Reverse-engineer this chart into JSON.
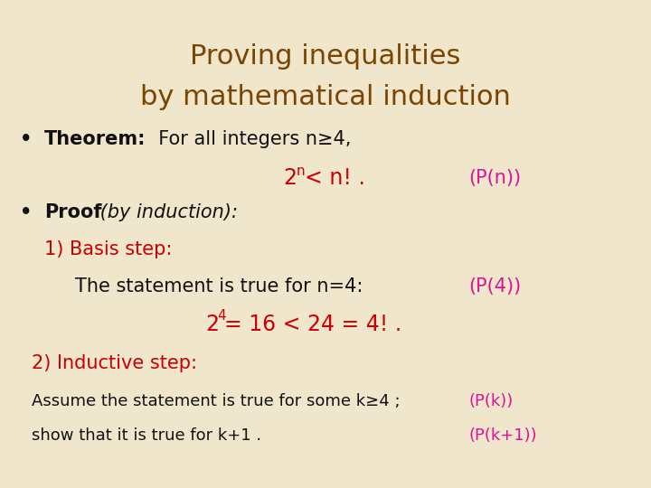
{
  "bg_color": "#f0e6cc",
  "title_line1": "Proving inequalities",
  "title_line2": "by mathematical induction",
  "title_color": "#7a4500",
  "red_color": "#cc0000",
  "pink_color": "#dd1199",
  "black_color": "#111111",
  "title_fontsize": 22,
  "body_fontsize": 15,
  "small_fontsize": 13,
  "formula_fontsize": 17,
  "super_fontsize": 11
}
